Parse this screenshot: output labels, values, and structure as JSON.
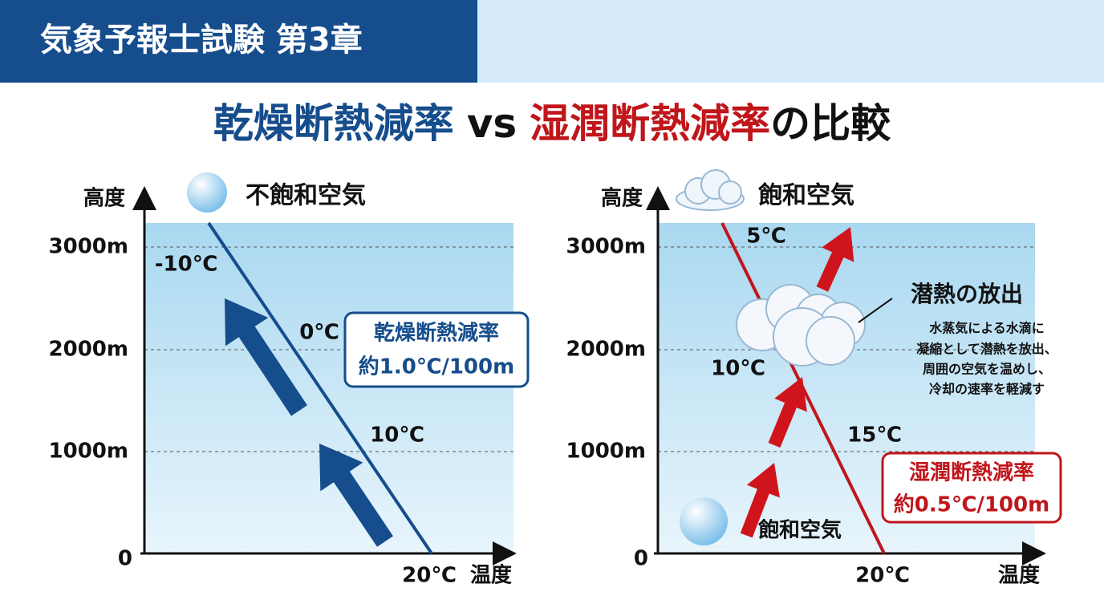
{
  "header": {
    "title": "気象予報士試験 第3章"
  },
  "title": {
    "dry": "乾燥断熱減率",
    "vs": "vs",
    "moist": "湿潤断熱減率",
    "suffix": "の比較"
  },
  "panels": [
    {
      "y_axis_label": "高度",
      "x_axis_label": "温度",
      "y_ticks": [
        "3000m",
        "2000m",
        "1000m",
        "0"
      ],
      "air_label": "不飽和空気",
      "temps": [
        "-10℃",
        "0℃",
        "10℃",
        "20℃"
      ],
      "box": [
        "乾燥断熱減率",
        "約1.0℃/100m"
      ]
    },
    {
      "y_axis_label": "高度",
      "x_axis_label": "温度",
      "y_ticks": [
        "3000m",
        "2000m",
        "1000m",
        "0"
      ],
      "air_label": "飽和空気",
      "bottom_label": "飽和空気",
      "temps": [
        "5℃",
        "10℃",
        "15℃",
        "20℃"
      ],
      "box": [
        "湿潤断熱減率",
        "約0.5℃/100m"
      ],
      "note": {
        "title": "潜熱の放出",
        "lines": [
          "水蒸気による水滴に",
          "凝縮として潜熱を放出、",
          "周囲の空気を温めし、",
          "冷却の速率を軽減す"
        ]
      }
    }
  ]
}
